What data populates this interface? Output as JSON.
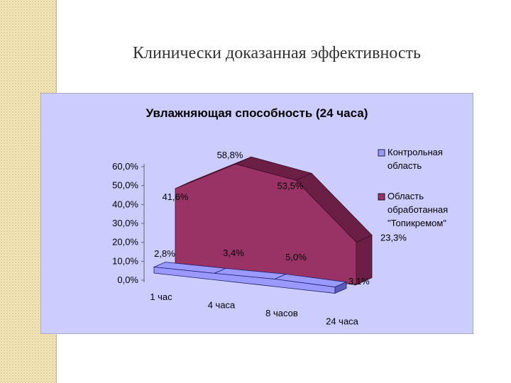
{
  "slide": {
    "title": "Клинически доказанная эффективность"
  },
  "colors": {
    "plot_area": "#ccccff",
    "control": "#9999ff",
    "control_dark": "#5c5cbf",
    "treated": "#993366",
    "treated_dark": "#6b1f45",
    "side_strip": "#f3e6bd"
  },
  "chart_data": {
    "type": "area",
    "style": "3d",
    "title": "Увлажняющая способность (24 часа)",
    "categories": [
      "1 час",
      "4 часа",
      "8 часов",
      "24 часа"
    ],
    "series": [
      {
        "name": "Контрольная область",
        "values": [
          2.8,
          3.4,
          5.0,
          3.1
        ],
        "labels": [
          "2,8%",
          "3,4%",
          "5,0%",
          "3,1%"
        ]
      },
      {
        "name": "Область обработанная \"Топикремом\"",
        "values": [
          41.6,
          58.8,
          53.5,
          23.3
        ],
        "labels": [
          "41,6%",
          "58,8%",
          "53,5%",
          "23,3%"
        ]
      }
    ],
    "yticks": [
      "0,0%",
      "10,0%",
      "20,0%",
      "30,0%",
      "40,0%",
      "50,0%",
      "60,0%"
    ],
    "ylim": [
      0,
      60
    ],
    "legend_position": "right",
    "grid": false
  }
}
